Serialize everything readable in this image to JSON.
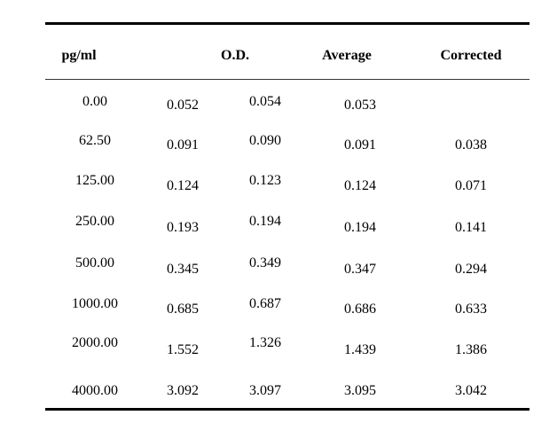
{
  "table": {
    "headers": {
      "concentration": "pg/ml",
      "od": "O.D.",
      "average": "Average",
      "corrected": "Corrected"
    },
    "rows": [
      {
        "conc": "0.00",
        "od1": "0.052",
        "od2": "0.054",
        "avg": "0.053",
        "corr": ""
      },
      {
        "conc": "62.50",
        "od1": "0.091",
        "od2": "0.090",
        "avg": "0.091",
        "corr": "0.038"
      },
      {
        "conc": "125.00",
        "od1": "0.124",
        "od2": "0.123",
        "avg": "0.124",
        "corr": "0.071"
      },
      {
        "conc": "250.00",
        "od1": "0.193",
        "od2": "0.194",
        "avg": "0.194",
        "corr": "0.141"
      },
      {
        "conc": "500.00",
        "od1": "0.345",
        "od2": "0.349",
        "avg": "0.347",
        "corr": "0.294"
      },
      {
        "conc": "1000.00",
        "od1": "0.685",
        "od2": "0.687",
        "avg": "0.686",
        "corr": "0.633"
      },
      {
        "conc": "2000.00",
        "od1": "1.552",
        "od2": "1.326",
        "avg": "1.439",
        "corr": "1.386"
      },
      {
        "conc": "4000.00",
        "od1": "3.092",
        "od2": "3.097",
        "avg": "3.095",
        "corr": "3.042"
      }
    ]
  }
}
